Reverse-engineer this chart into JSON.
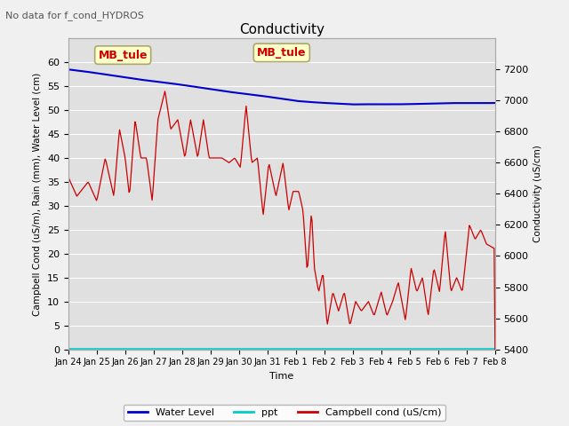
{
  "title": "Conductivity",
  "top_left_text": "No data for f_cond_HYDROS",
  "annotation_box": "MB_tule",
  "ylabel_left": "Campbell Cond (uS/m), Rain (mm), Water Level (cm)",
  "ylabel_right": "Conductivity (uS/cm)",
  "xlabel": "Time",
  "ylim_left": [
    0,
    65
  ],
  "ylim_right": [
    5400,
    7400
  ],
  "fig_bg_color": "#f0f0f0",
  "plot_bg_color": "#e0e0e0",
  "grid_color": "#ffffff",
  "x_tick_labels": [
    "Jan 24",
    "Jan 25",
    "Jan 26",
    "Jan 27",
    "Jan 28",
    "Jan 29",
    "Jan 30",
    "Jan 31",
    "Feb 1",
    "Feb 2",
    "Feb 3",
    "Feb 4",
    "Feb 5",
    "Feb 6",
    "Feb 7",
    "Feb 8"
  ],
  "water_level_color": "#0000cc",
  "ppt_color": "#00cccc",
  "campbell_color": "#cc0000",
  "legend_labels": [
    "Water Level",
    "ppt",
    "Campbell cond (uS/cm)"
  ],
  "annotation_color": "#cc0000",
  "annotation_bg": "#ffffc8",
  "annotation_edge": "#aaa870"
}
